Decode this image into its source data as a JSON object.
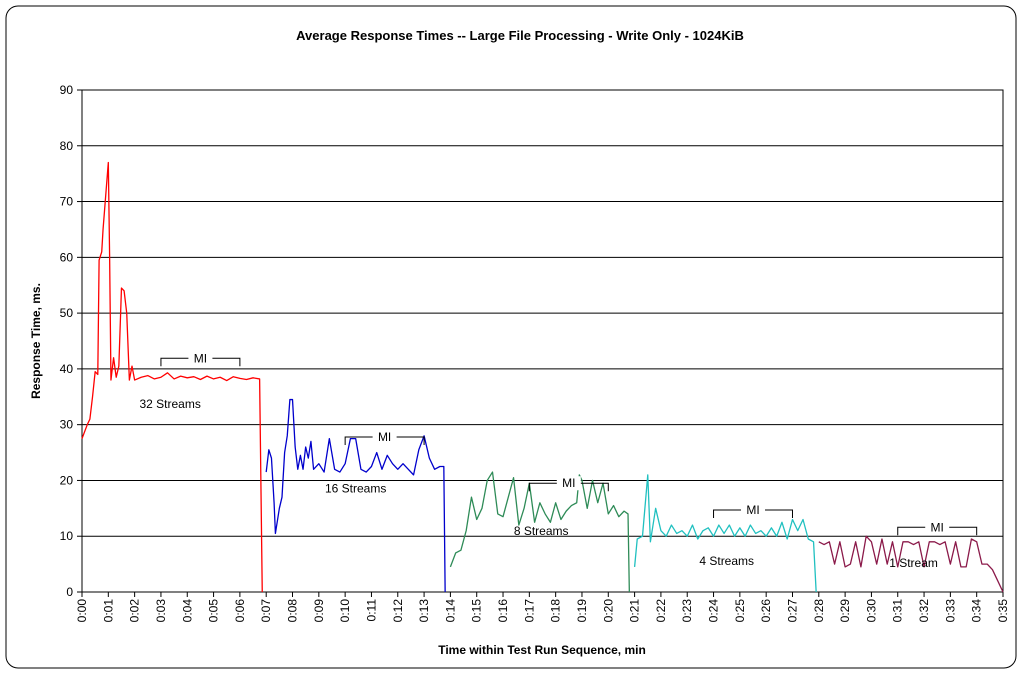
{
  "chart_data": {
    "type": "line",
    "title": "Average Response Times -- Large File Processing - Write Only - 1024KiB",
    "x_label": "Time within Test Run Sequence, min",
    "y_label": "Response Time, ms.",
    "xlim": [
      0,
      35
    ],
    "ylim": [
      0,
      90
    ],
    "yticks": [
      0,
      10,
      20,
      30,
      40,
      50,
      60,
      70,
      80,
      90
    ],
    "xticks": [
      {
        "value": 0,
        "label": "0:00"
      },
      {
        "value": 1,
        "label": "0:01"
      },
      {
        "value": 2,
        "label": "0:02"
      },
      {
        "value": 3,
        "label": "0:03"
      },
      {
        "value": 4,
        "label": "0:04"
      },
      {
        "value": 5,
        "label": "0:05"
      },
      {
        "value": 6,
        "label": "0:06"
      },
      {
        "value": 7,
        "label": "0:07"
      },
      {
        "value": 8,
        "label": "0:08"
      },
      {
        "value": 9,
        "label": "0:09"
      },
      {
        "value": 10,
        "label": "0:10"
      },
      {
        "value": 11,
        "label": "0:11"
      },
      {
        "value": 12,
        "label": "0:12"
      },
      {
        "value": 13,
        "label": "0:13"
      },
      {
        "value": 14,
        "label": "0:14"
      },
      {
        "value": 15,
        "label": "0:15"
      },
      {
        "value": 16,
        "label": "0:16"
      },
      {
        "value": 17,
        "label": "0:17"
      },
      {
        "value": 18,
        "label": "0:18"
      },
      {
        "value": 19,
        "label": "0:19"
      },
      {
        "value": 20,
        "label": "0:20"
      },
      {
        "value": 21,
        "label": "0:21"
      },
      {
        "value": 22,
        "label": "0:22"
      },
      {
        "value": 23,
        "label": "0:23"
      },
      {
        "value": 24,
        "label": "0:24"
      },
      {
        "value": 25,
        "label": "0:25"
      },
      {
        "value": 26,
        "label": "0:26"
      },
      {
        "value": 27,
        "label": "0:27"
      },
      {
        "value": 28,
        "label": "0:28"
      },
      {
        "value": 29,
        "label": "0:29"
      },
      {
        "value": 30,
        "label": "0:30"
      },
      {
        "value": 31,
        "label": "0:31"
      },
      {
        "value": 32,
        "label": "0:32"
      },
      {
        "value": 33,
        "label": "0:33"
      },
      {
        "value": 34,
        "label": "0:34"
      },
      {
        "value": 35,
        "label": "0:35"
      }
    ],
    "grid": true,
    "series": [
      {
        "color": "#ff0000",
        "x": [
          0,
          0.2,
          0.3,
          0.4,
          0.5,
          0.6,
          0.65,
          0.75,
          0.8,
          0.9,
          1.0,
          1.05,
          1.1,
          1.2,
          1.3,
          1.4,
          1.5,
          1.6,
          1.7,
          1.8,
          1.9,
          2.0,
          2.25,
          2.5,
          2.75,
          3.0,
          3.25,
          3.5,
          3.75,
          4.0,
          4.25,
          4.5,
          4.75,
          5.0,
          5.25,
          5.5,
          5.75,
          6.0,
          6.25,
          6.5,
          6.75,
          6.85
        ],
        "values": [
          27.5,
          30,
          31,
          35,
          39.5,
          39,
          59.5,
          61,
          65,
          71,
          77,
          60,
          38,
          42,
          38.5,
          40.5,
          54.5,
          54,
          50,
          38,
          40.5,
          38,
          38.5,
          38.8,
          38.2,
          38.5,
          39.3,
          38.2,
          38.7,
          38.4,
          38.6,
          38.1,
          38.7,
          38.2,
          38.5,
          37.9,
          38.6,
          38.3,
          38.1,
          38.4,
          38.2,
          0
        ]
      },
      {
        "color": "#0000cc",
        "x": [
          7.0,
          7.1,
          7.2,
          7.3,
          7.35,
          7.5,
          7.6,
          7.7,
          7.8,
          7.9,
          8.0,
          8.1,
          8.2,
          8.3,
          8.4,
          8.5,
          8.6,
          8.7,
          8.8,
          9.0,
          9.2,
          9.4,
          9.6,
          9.8,
          10.0,
          10.2,
          10.4,
          10.6,
          10.8,
          11.0,
          11.2,
          11.4,
          11.6,
          11.8,
          12.0,
          12.2,
          12.4,
          12.6,
          12.8,
          13.0,
          13.2,
          13.4,
          13.6,
          13.75,
          13.8
        ],
        "values": [
          21.5,
          25.5,
          24,
          16,
          10.5,
          15,
          17,
          25,
          28,
          34.5,
          34.5,
          26,
          22,
          24.5,
          22,
          26,
          24,
          27,
          22,
          23,
          21.5,
          27.5,
          22,
          21.5,
          23,
          27.5,
          27.5,
          22,
          21.5,
          22.5,
          25,
          22,
          24.5,
          23,
          22,
          23,
          22,
          21,
          25.5,
          28,
          24,
          22,
          22.5,
          22.5,
          0
        ]
      },
      {
        "color": "#2e8b57",
        "x": [
          14.0,
          14.2,
          14.4,
          14.6,
          14.8,
          15.0,
          15.2,
          15.4,
          15.6,
          15.8,
          16.0,
          16.2,
          16.4,
          16.6,
          16.8,
          17.0,
          17.2,
          17.4,
          17.6,
          17.8,
          18.0,
          18.2,
          18.4,
          18.6,
          18.8,
          18.9,
          19.0,
          19.2,
          19.4,
          19.6,
          19.8,
          20.0,
          20.2,
          20.4,
          20.6,
          20.75,
          20.8
        ],
        "values": [
          4.5,
          7,
          7.5,
          11,
          17,
          13,
          15,
          20,
          21.5,
          14,
          13.5,
          17,
          20.5,
          12,
          15,
          19.5,
          12.5,
          16,
          14,
          12.5,
          16,
          13,
          14.5,
          15.5,
          16,
          21,
          20,
          15,
          20,
          16,
          19.5,
          14,
          15.5,
          13.5,
          14.5,
          14,
          0
        ]
      },
      {
        "color": "#20c0c0",
        "x": [
          21.0,
          21.1,
          21.3,
          21.5,
          21.6,
          21.8,
          22.0,
          22.2,
          22.4,
          22.6,
          22.8,
          23.0,
          23.2,
          23.4,
          23.6,
          23.8,
          24.0,
          24.2,
          24.4,
          24.6,
          24.8,
          25.0,
          25.2,
          25.4,
          25.6,
          25.8,
          26.0,
          26.2,
          26.4,
          26.6,
          26.8,
          27.0,
          27.2,
          27.4,
          27.6,
          27.8,
          27.9
        ],
        "values": [
          4.5,
          9.5,
          10,
          21,
          9,
          15,
          11,
          10,
          12,
          10.5,
          11,
          10,
          12,
          9.5,
          11,
          11.5,
          10,
          12,
          10.5,
          12,
          10,
          11.5,
          10,
          12,
          10.5,
          11,
          10,
          11.5,
          10,
          12.5,
          9.5,
          13,
          11,
          13,
          9.5,
          9,
          0
        ]
      },
      {
        "color": "#8b1a4a",
        "x": [
          28.0,
          28.2,
          28.4,
          28.6,
          28.8,
          29.0,
          29.2,
          29.4,
          29.6,
          29.8,
          30.0,
          30.2,
          30.4,
          30.6,
          30.8,
          31.0,
          31.2,
          31.4,
          31.6,
          31.8,
          32.0,
          32.2,
          32.4,
          32.6,
          32.8,
          33.0,
          33.2,
          33.4,
          33.6,
          33.8,
          34.0,
          34.2,
          34.4,
          34.6,
          34.8,
          35.0
        ],
        "values": [
          9,
          8.5,
          9,
          5,
          9,
          4.5,
          5,
          9,
          4.5,
          10,
          9,
          5,
          9.5,
          5,
          9,
          4.5,
          9,
          9,
          8.5,
          9,
          4.5,
          9,
          9,
          8.5,
          9,
          5,
          9,
          4.5,
          4.5,
          9.5,
          9,
          5,
          5,
          4,
          2,
          0
        ]
      }
    ],
    "annotations": [
      {
        "text": "32 Streams",
        "x": 3.35,
        "y": 33.7
      },
      {
        "text": "16 Streams",
        "x": 10.4,
        "y": 18.6
      },
      {
        "text": "8 Streams",
        "x": 17.45,
        "y": 10.9
      },
      {
        "text": "4 Streams",
        "x": 24.5,
        "y": 5.6
      },
      {
        "text": "1 Stream",
        "x": 31.6,
        "y": 5.2
      }
    ],
    "brackets": [
      {
        "text": "MI",
        "x": [
          3,
          6
        ],
        "y": 41.9
      },
      {
        "text": "MI",
        "x": [
          10,
          13
        ],
        "y": 27.8
      },
      {
        "text": "MI",
        "x": [
          17,
          20
        ],
        "y": 19.5
      },
      {
        "text": "MI",
        "x": [
          24,
          27
        ],
        "y": 14.7
      },
      {
        "text": "MI",
        "x": [
          31,
          34
        ],
        "y": 11.6
      }
    ]
  }
}
